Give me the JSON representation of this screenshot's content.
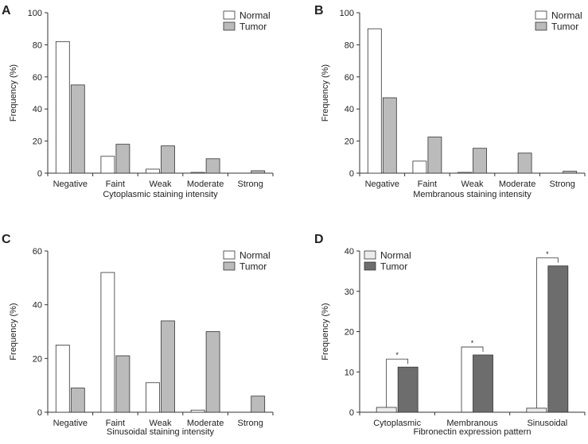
{
  "colors": {
    "normal": "#ffffff",
    "tumor": "#bbbbbb",
    "tumor_dark": "#6d6d6d",
    "normal_light": "#ececec",
    "axis": "#333333"
  },
  "chart_data": [
    {
      "type": "bar",
      "panel": "A",
      "categories": [
        "Negative",
        "Faint",
        "Weak",
        "Moderate",
        "Strong"
      ],
      "series": [
        {
          "name": "Normal",
          "values": [
            82,
            10.5,
            2.5,
            0.5,
            0
          ]
        },
        {
          "name": "Tumor",
          "values": [
            55,
            18,
            17,
            9,
            1.5
          ]
        }
      ],
      "xlabel": "Cytoplasmic staining intensity",
      "ylabel": "Frequency (%)",
      "ylim": [
        0,
        100
      ],
      "yticks": [
        0,
        20,
        40,
        60,
        80,
        100
      ],
      "legend": [
        "Normal",
        "Tumor"
      ],
      "legend_position": "top-right"
    },
    {
      "type": "bar",
      "panel": "B",
      "categories": [
        "Negative",
        "Faint",
        "Weak",
        "Moderate",
        "Strong"
      ],
      "series": [
        {
          "name": "Normal",
          "values": [
            90,
            7.5,
            0.5,
            0,
            0
          ]
        },
        {
          "name": "Tumor",
          "values": [
            47,
            22.5,
            15.5,
            12.5,
            1.2
          ]
        }
      ],
      "xlabel": "Membranous staining intensity",
      "ylabel": "Frequency (%)",
      "ylim": [
        0,
        100
      ],
      "yticks": [
        0,
        20,
        40,
        60,
        80,
        100
      ],
      "legend": [
        "Normal",
        "Tumor"
      ],
      "legend_position": "top-right"
    },
    {
      "type": "bar",
      "panel": "C",
      "categories": [
        "Negative",
        "Faint",
        "Weak",
        "Moderate",
        "Strong"
      ],
      "series": [
        {
          "name": "Normal",
          "values": [
            25,
            52,
            11,
            0.8,
            0
          ]
        },
        {
          "name": "Tumor",
          "values": [
            9,
            21,
            34,
            30,
            6
          ]
        }
      ],
      "xlabel": "Sinusoidal staining intensity",
      "ylabel": "Frequency (%)",
      "ylim": [
        0,
        60
      ],
      "yticks": [
        0,
        20,
        40,
        60
      ],
      "legend": [
        "Normal",
        "Tumor"
      ],
      "legend_position": "top-right"
    },
    {
      "type": "bar",
      "panel": "D",
      "categories": [
        "Cytoplasmic",
        "Membranous",
        "Sinusoidal"
      ],
      "series": [
        {
          "name": "Normal",
          "values": [
            1.2,
            0,
            1
          ]
        },
        {
          "name": "Tumor",
          "values": [
            11.2,
            14.2,
            36.3
          ]
        }
      ],
      "xlabel": "Fibronectin expression pattern",
      "ylabel": "Frequency (%)",
      "ylim": [
        0,
        40
      ],
      "yticks": [
        0,
        10,
        20,
        30,
        40
      ],
      "legend": [
        "Normal",
        "Tumor"
      ],
      "legend_position": "top-left",
      "significance": [
        "*",
        "*",
        "*"
      ]
    }
  ]
}
